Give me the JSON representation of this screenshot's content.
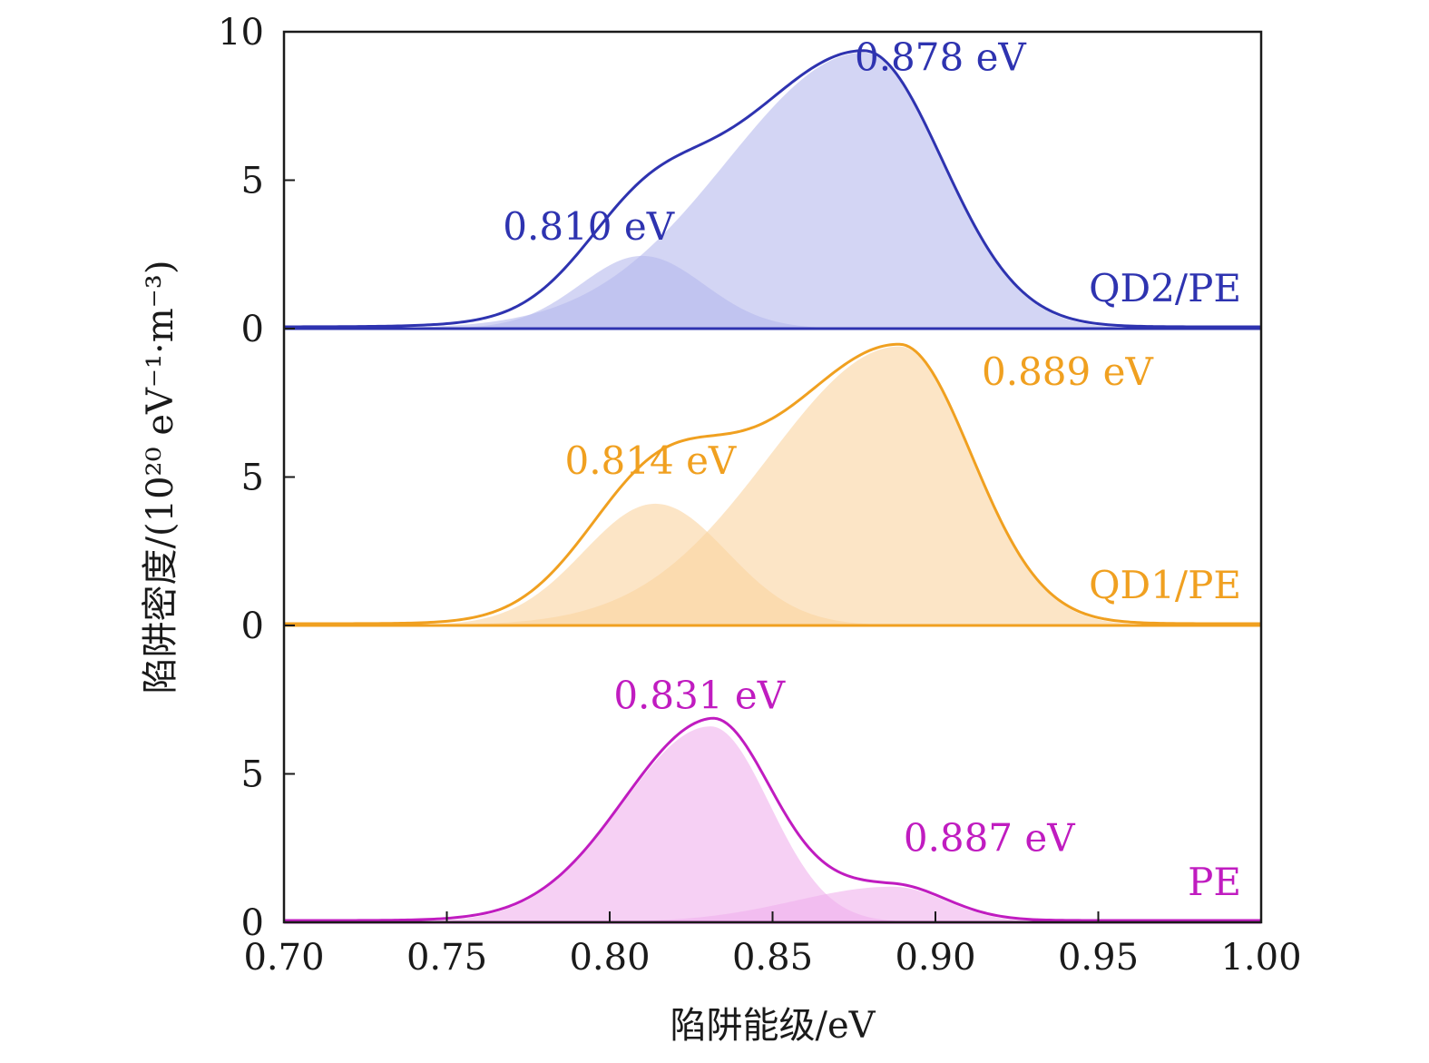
{
  "chart_data": {
    "type": "area",
    "xlabel": "陷阱能级/eV",
    "ylabel": "陷阱密度/(10²⁰ eV⁻¹·m⁻³)",
    "xlim": [
      0.7,
      1.0
    ],
    "x_ticks": [
      "0.70",
      "0.75",
      "0.80",
      "0.85",
      "0.90",
      "0.95",
      "1.00"
    ],
    "grid": false,
    "panels": [
      {
        "label": "QD2/PE",
        "color": "#2e33b0",
        "fill_color": "#b6b9ec",
        "ylim": [
          0,
          10
        ],
        "y_ticks": [
          "0",
          "5",
          "10"
        ],
        "peaks": [
          {
            "center": 0.81,
            "amplitude": 2.45,
            "sigma": 0.019
          },
          {
            "center": 0.878,
            "amplitude": 9.3,
            "sigma": 0.024,
            "left_sigma": 0.042
          }
        ],
        "annotations": [
          {
            "text": "0.810 eV",
            "x": 0.7935,
            "y": 3.0
          },
          {
            "text": "0.878 eV",
            "x": 0.9015,
            "y": 8.7
          }
        ]
      },
      {
        "label": "QD1/PE",
        "color": "#f0a020",
        "fill_color": "#fad4a0",
        "ylim": [
          0,
          10
        ],
        "y_ticks": [
          "0",
          "5"
        ],
        "peaks": [
          {
            "center": 0.814,
            "amplitude": 4.1,
            "sigma": 0.022
          },
          {
            "center": 0.889,
            "amplitude": 9.4,
            "sigma": 0.022,
            "left_sigma": 0.04
          }
        ],
        "annotations": [
          {
            "text": "0.814 eV",
            "x": 0.8125,
            "y": 5.1
          },
          {
            "text": "0.889 eV",
            "x": 0.9405,
            "y": 8.1
          }
        ]
      },
      {
        "label": "PE",
        "color": "#c01cc0",
        "fill_color": "#f0b0ec",
        "ylim": [
          0,
          10
        ],
        "y_ticks": [
          "0",
          "5"
        ],
        "peaks": [
          {
            "center": 0.831,
            "amplitude": 6.6,
            "sigma": 0.027,
            "right_sigma": 0.018
          },
          {
            "center": 0.887,
            "amplitude": 1.2,
            "sigma": 0.016,
            "left_sigma": 0.03
          }
        ],
        "annotations": [
          {
            "text": "0.831 eV",
            "x": 0.8275,
            "y": 7.2
          },
          {
            "text": "0.887 eV",
            "x": 0.9165,
            "y": 2.4
          }
        ]
      }
    ]
  }
}
